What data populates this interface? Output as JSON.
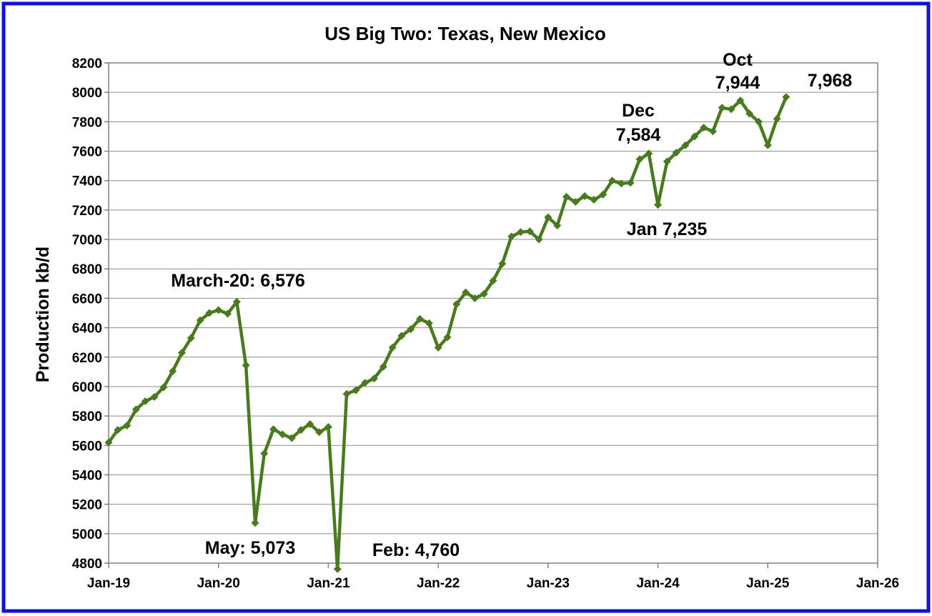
{
  "chart_data": {
    "type": "line",
    "title": "US Big Two: Texas, New Mexico",
    "xlabel": "",
    "ylabel": "Production kb/d",
    "ylim": [
      4800,
      8200
    ],
    "yticks": [
      4800,
      5000,
      5200,
      5400,
      5600,
      5800,
      6000,
      6200,
      6400,
      6600,
      6800,
      7000,
      7200,
      7400,
      7600,
      7800,
      8000,
      8200
    ],
    "xlim": [
      "2019-01",
      "2026-01"
    ],
    "xtick_labels": [
      "Jan-19",
      "Jan-20",
      "Jan-21",
      "Jan-22",
      "Jan-23",
      "Jan-24",
      "Jan-25",
      "Jan-26"
    ],
    "grid": "horizontal",
    "line_color": "#4a7a1e",
    "series": [
      {
        "name": "",
        "x": [
          "2019-01",
          "2019-02",
          "2019-03",
          "2019-04",
          "2019-05",
          "2019-06",
          "2019-07",
          "2019-08",
          "2019-09",
          "2019-10",
          "2019-11",
          "2019-12",
          "2020-01",
          "2020-02",
          "2020-03",
          "2020-04",
          "2020-05",
          "2020-06",
          "2020-07",
          "2020-08",
          "2020-09",
          "2020-10",
          "2020-11",
          "2020-12",
          "2021-01",
          "2021-02",
          "2021-03",
          "2021-04",
          "2021-05",
          "2021-06",
          "2021-07",
          "2021-08",
          "2021-09",
          "2021-10",
          "2021-11",
          "2021-12",
          "2022-01",
          "2022-02",
          "2022-03",
          "2022-04",
          "2022-05",
          "2022-06",
          "2022-07",
          "2022-08",
          "2022-09",
          "2022-10",
          "2022-11",
          "2022-12",
          "2023-01",
          "2023-02",
          "2023-03",
          "2023-04",
          "2023-05",
          "2023-06",
          "2023-07",
          "2023-08",
          "2023-09",
          "2023-10",
          "2023-11",
          "2023-12",
          "2024-01",
          "2024-02",
          "2024-03",
          "2024-04",
          "2024-05",
          "2024-06",
          "2024-07",
          "2024-08",
          "2024-09",
          "2024-10",
          "2024-11",
          "2024-12",
          "2025-01",
          "2025-02",
          "2025-03"
        ],
        "values": [
          5620,
          5705,
          5735,
          5845,
          5900,
          5930,
          5995,
          6105,
          6230,
          6330,
          6450,
          6500,
          6520,
          6495,
          6576,
          6145,
          5073,
          5545,
          5710,
          5675,
          5650,
          5705,
          5745,
          5690,
          5725,
          4760,
          5950,
          5975,
          6025,
          6055,
          6135,
          6265,
          6345,
          6390,
          6460,
          6430,
          6265,
          6335,
          6560,
          6640,
          6600,
          6630,
          6720,
          6835,
          7020,
          7050,
          7055,
          7000,
          7150,
          7095,
          7290,
          7255,
          7295,
          7270,
          7305,
          7400,
          7380,
          7385,
          7545,
          7584,
          7235,
          7530,
          7590,
          7640,
          7700,
          7760,
          7735,
          7895,
          7885,
          7944,
          7855,
          7800,
          7640,
          7820,
          7968
        ]
      }
    ],
    "annotations": [
      {
        "text": "March-20: 6,576"
      },
      {
        "text": "May: 5,073"
      },
      {
        "text": "Feb: 4,760"
      },
      {
        "text": "Dec"
      },
      {
        "text": "7,584"
      },
      {
        "text": "Jan 7,235"
      },
      {
        "text": "Oct"
      },
      {
        "text": "7,944"
      },
      {
        "text": "7,968"
      }
    ],
    "frame_color": "#1010e0"
  }
}
